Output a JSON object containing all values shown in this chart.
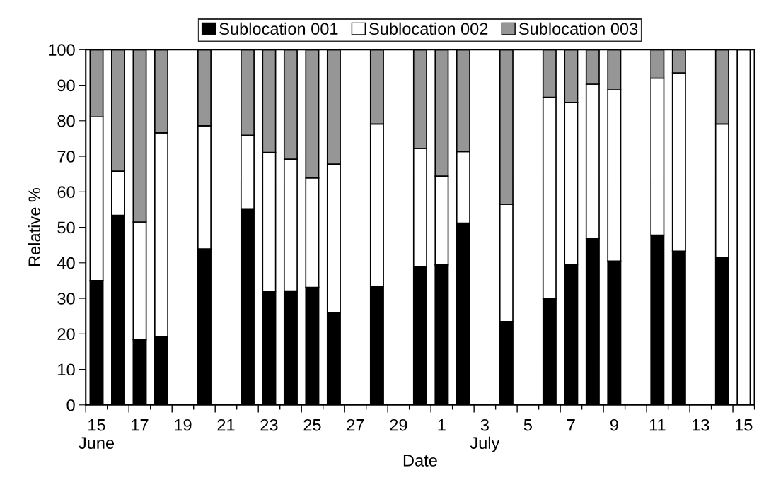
{
  "chart_data": {
    "type": "bar",
    "stacked": true,
    "xlabel": "Date",
    "ylabel": "Relative %",
    "categories": [
      "15\nJune",
      null,
      "17",
      null,
      "19",
      null,
      "21",
      null,
      "23",
      null,
      "25",
      null,
      "27",
      null,
      "29",
      null,
      "1",
      null,
      "3\nJuly",
      null,
      "5",
      null,
      "7",
      null,
      "9",
      null,
      "11",
      null,
      "13",
      null,
      "15"
    ],
    "series": [
      {
        "name": "Sublocation 001",
        "color": "#000000",
        "values": [
          35.0,
          53.4,
          18.4,
          19.3,
          null,
          43.9,
          null,
          55.2,
          32.0,
          32.1,
          33.1,
          25.9,
          null,
          33.3,
          null,
          39.0,
          39.4,
          51.2,
          null,
          23.5,
          null,
          29.9,
          39.6,
          46.9,
          40.5,
          null,
          47.8,
          43.3,
          null,
          41.6,
          0
        ]
      },
      {
        "name": "Sublocation 002",
        "color": "#ffffff",
        "values": [
          46.1,
          12.4,
          33.1,
          57.3,
          null,
          34.7,
          null,
          20.7,
          39.1,
          37.1,
          30.8,
          41.9,
          null,
          45.8,
          null,
          33.2,
          25.0,
          20.1,
          null,
          33.0,
          null,
          56.7,
          45.5,
          43.4,
          48.2,
          null,
          44.2,
          50.2,
          null,
          37.5,
          100
        ]
      },
      {
        "name": "Sublocation 003",
        "color": "#969696",
        "values": [
          18.9,
          34.2,
          48.5,
          23.4,
          null,
          21.4,
          null,
          24.1,
          28.9,
          30.8,
          36.1,
          32.2,
          null,
          20.9,
          null,
          27.8,
          35.6,
          28.7,
          null,
          43.5,
          null,
          13.4,
          14.9,
          9.7,
          11.3,
          null,
          8.0,
          6.5,
          null,
          20.9,
          0
        ]
      }
    ],
    "ylim": [
      0,
      100
    ],
    "yticks": [
      0,
      10,
      20,
      30,
      40,
      50,
      60,
      70,
      80,
      90,
      100
    ],
    "legend": "top"
  }
}
